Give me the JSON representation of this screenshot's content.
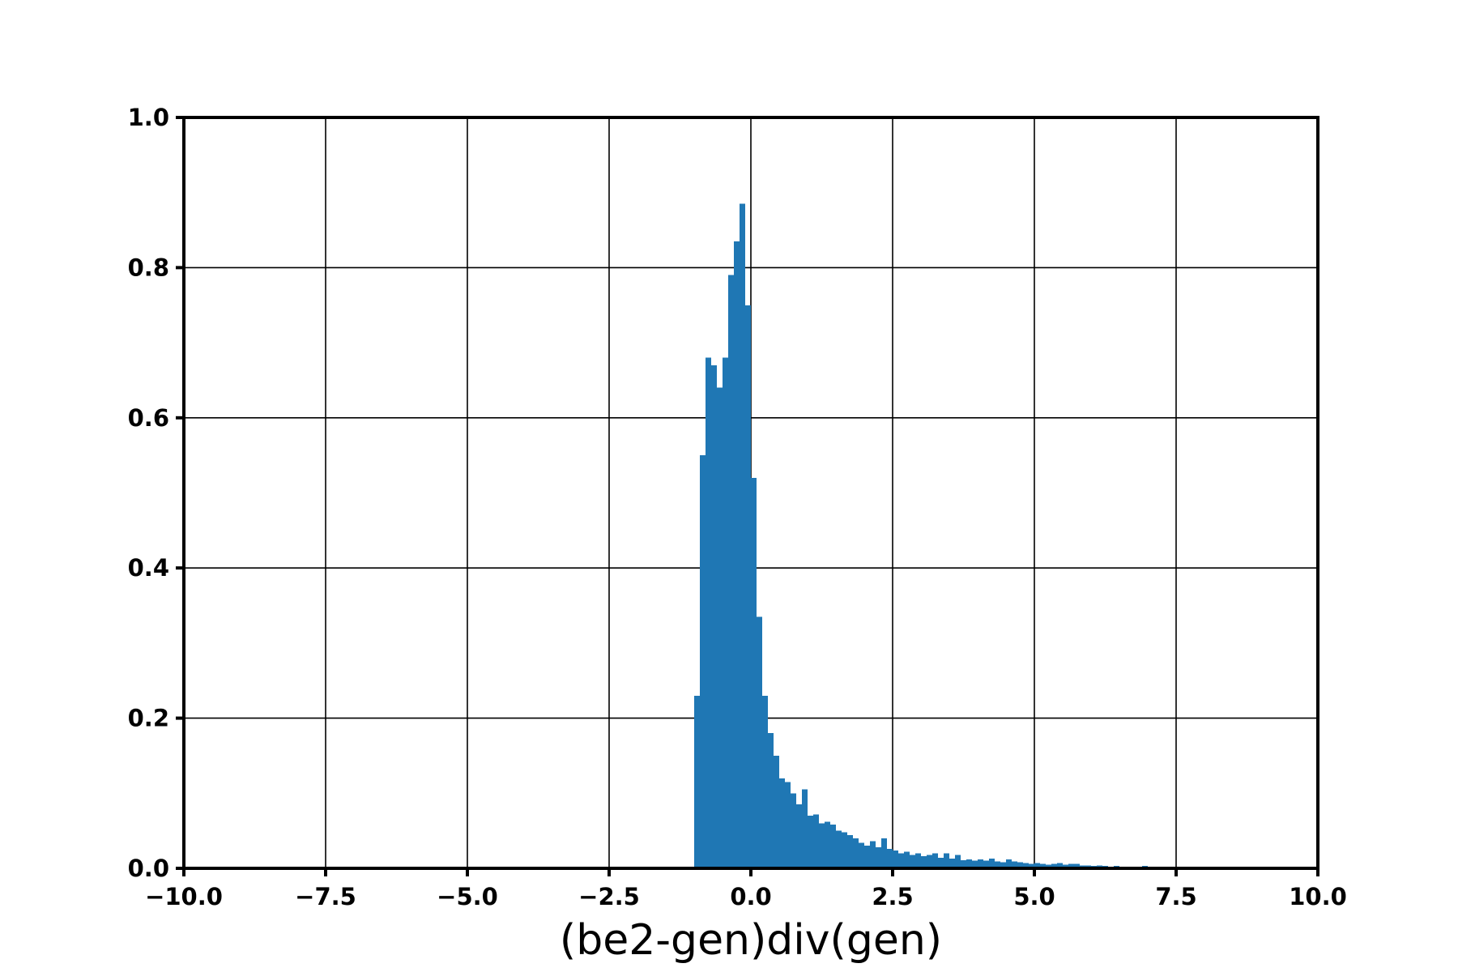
{
  "chart_data": {
    "type": "bar",
    "title": "",
    "xlabel": "(be2-gen)div(gen)",
    "ylabel": "",
    "xlim": [
      -10.0,
      10.0
    ],
    "ylim": [
      0.0,
      1.0
    ],
    "grid": true,
    "xticks": [
      -10.0,
      -7.5,
      -5.0,
      -2.5,
      0.0,
      2.5,
      5.0,
      7.5,
      10.0
    ],
    "xtick_labels": [
      "−10.0",
      "−7.5",
      "−5.0",
      "−2.5",
      "0.0",
      "2.5",
      "5.0",
      "7.5",
      "10.0"
    ],
    "yticks": [
      0.0,
      0.2,
      0.4,
      0.6,
      0.8,
      1.0
    ],
    "ytick_labels": [
      "0.0",
      "0.2",
      "0.4",
      "0.6",
      "0.8",
      "1.0"
    ],
    "bar_color": "#1f77b4",
    "bin_width": 0.1,
    "bins": [
      {
        "x": -0.95,
        "y": 0.23
      },
      {
        "x": -0.85,
        "y": 0.55
      },
      {
        "x": -0.75,
        "y": 0.68
      },
      {
        "x": -0.65,
        "y": 0.67
      },
      {
        "x": -0.55,
        "y": 0.64
      },
      {
        "x": -0.45,
        "y": 0.68
      },
      {
        "x": -0.35,
        "y": 0.79
      },
      {
        "x": -0.25,
        "y": 0.835
      },
      {
        "x": -0.15,
        "y": 0.885
      },
      {
        "x": -0.05,
        "y": 0.75
      },
      {
        "x": 0.05,
        "y": 0.52
      },
      {
        "x": 0.15,
        "y": 0.335
      },
      {
        "x": 0.25,
        "y": 0.23
      },
      {
        "x": 0.35,
        "y": 0.18
      },
      {
        "x": 0.45,
        "y": 0.15
      },
      {
        "x": 0.55,
        "y": 0.12
      },
      {
        "x": 0.65,
        "y": 0.115
      },
      {
        "x": 0.75,
        "y": 0.1
      },
      {
        "x": 0.85,
        "y": 0.085
      },
      {
        "x": 0.95,
        "y": 0.105
      },
      {
        "x": 1.05,
        "y": 0.07
      },
      {
        "x": 1.15,
        "y": 0.072
      },
      {
        "x": 1.25,
        "y": 0.06
      },
      {
        "x": 1.35,
        "y": 0.062
      },
      {
        "x": 1.45,
        "y": 0.058
      },
      {
        "x": 1.55,
        "y": 0.05
      },
      {
        "x": 1.65,
        "y": 0.048
      },
      {
        "x": 1.75,
        "y": 0.044
      },
      {
        "x": 1.85,
        "y": 0.04
      },
      {
        "x": 1.95,
        "y": 0.034
      },
      {
        "x": 2.05,
        "y": 0.03
      },
      {
        "x": 2.15,
        "y": 0.036
      },
      {
        "x": 2.25,
        "y": 0.028
      },
      {
        "x": 2.35,
        "y": 0.04
      },
      {
        "x": 2.45,
        "y": 0.026
      },
      {
        "x": 2.55,
        "y": 0.024
      },
      {
        "x": 2.65,
        "y": 0.02
      },
      {
        "x": 2.75,
        "y": 0.022
      },
      {
        "x": 2.85,
        "y": 0.018
      },
      {
        "x": 2.95,
        "y": 0.02
      },
      {
        "x": 3.05,
        "y": 0.016
      },
      {
        "x": 3.15,
        "y": 0.018
      },
      {
        "x": 3.25,
        "y": 0.02
      },
      {
        "x": 3.35,
        "y": 0.014
      },
      {
        "x": 3.45,
        "y": 0.02
      },
      {
        "x": 3.55,
        "y": 0.013
      },
      {
        "x": 3.65,
        "y": 0.018
      },
      {
        "x": 3.75,
        "y": 0.011
      },
      {
        "x": 3.85,
        "y": 0.012
      },
      {
        "x": 3.95,
        "y": 0.01
      },
      {
        "x": 4.05,
        "y": 0.012
      },
      {
        "x": 4.15,
        "y": 0.01
      },
      {
        "x": 4.25,
        "y": 0.013
      },
      {
        "x": 4.35,
        "y": 0.009
      },
      {
        "x": 4.45,
        "y": 0.008
      },
      {
        "x": 4.55,
        "y": 0.012
      },
      {
        "x": 4.65,
        "y": 0.009
      },
      {
        "x": 4.75,
        "y": 0.008
      },
      {
        "x": 4.85,
        "y": 0.007
      },
      {
        "x": 4.95,
        "y": 0.006
      },
      {
        "x": 5.05,
        "y": 0.007
      },
      {
        "x": 5.15,
        "y": 0.006
      },
      {
        "x": 5.25,
        "y": 0.005
      },
      {
        "x": 5.35,
        "y": 0.006
      },
      {
        "x": 5.45,
        "y": 0.007
      },
      {
        "x": 5.55,
        "y": 0.005
      },
      {
        "x": 5.65,
        "y": 0.006
      },
      {
        "x": 5.75,
        "y": 0.006
      },
      {
        "x": 5.85,
        "y": 0.004
      },
      {
        "x": 5.95,
        "y": 0.004
      },
      {
        "x": 6.05,
        "y": 0.003
      },
      {
        "x": 6.15,
        "y": 0.004
      },
      {
        "x": 6.25,
        "y": 0.003
      },
      {
        "x": 6.35,
        "y": 0.002
      },
      {
        "x": 6.45,
        "y": 0.003
      },
      {
        "x": 6.55,
        "y": 0.002
      },
      {
        "x": 6.65,
        "y": 0.002
      },
      {
        "x": 6.75,
        "y": 0.001
      },
      {
        "x": 6.85,
        "y": 0.002
      },
      {
        "x": 6.95,
        "y": 0.003
      },
      {
        "x": 7.05,
        "y": 0.002
      },
      {
        "x": 7.15,
        "y": 0.002
      },
      {
        "x": 7.25,
        "y": 0.001
      },
      {
        "x": 7.35,
        "y": 0.002
      },
      {
        "x": 7.45,
        "y": 0.001
      },
      {
        "x": 7.55,
        "y": 0.001
      },
      {
        "x": 7.65,
        "y": 0.001
      },
      {
        "x": 7.75,
        "y": 0.001
      },
      {
        "x": 7.85,
        "y": 0.001
      },
      {
        "x": 7.95,
        "y": 0.001
      },
      {
        "x": 8.05,
        "y": 0.001
      },
      {
        "x": 8.15,
        "y": 0.001
      },
      {
        "x": 8.25,
        "y": 0.001
      },
      {
        "x": 8.35,
        "y": 0.001
      },
      {
        "x": 8.45,
        "y": 0.001
      },
      {
        "x": 8.55,
        "y": 0.002
      },
      {
        "x": 8.65,
        "y": 0.001
      },
      {
        "x": 8.75,
        "y": 0.001
      },
      {
        "x": 8.85,
        "y": 0.001
      },
      {
        "x": 8.95,
        "y": 0.002
      }
    ]
  }
}
